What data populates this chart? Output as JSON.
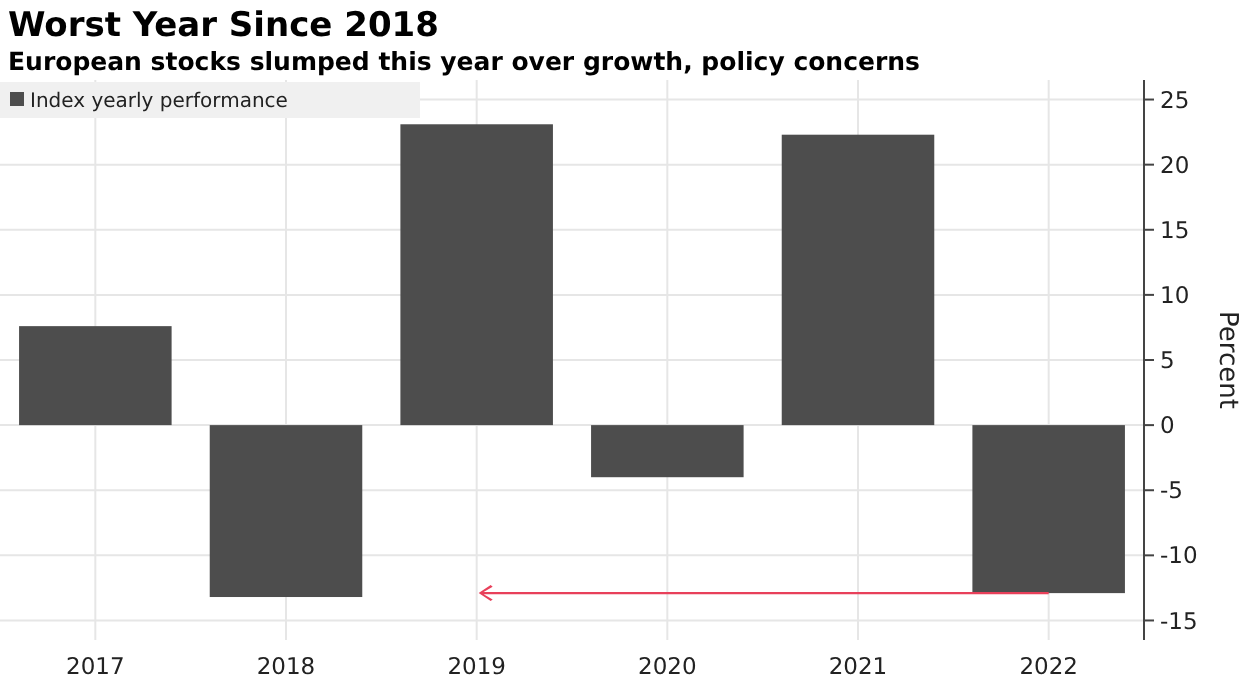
{
  "chart_data": {
    "type": "bar",
    "title": "Worst Year Since 2018",
    "subtitle": "European stocks slumped this year over growth, policy concerns",
    "ylabel": "Percent",
    "categories": [
      "2017",
      "2018",
      "2019",
      "2020",
      "2021",
      "2022"
    ],
    "series": [
      {
        "name": "Index yearly performance",
        "color": "#4d4d4d",
        "values": [
          7.6,
          -13.2,
          23.1,
          -4.0,
          22.3,
          -12.9
        ]
      }
    ],
    "ylim": [
      -16.5,
      26.5
    ],
    "yticks": [
      -15,
      -10,
      -5,
      0,
      5,
      10,
      15,
      20,
      25
    ],
    "grid": true,
    "legend": "top left"
  }
}
